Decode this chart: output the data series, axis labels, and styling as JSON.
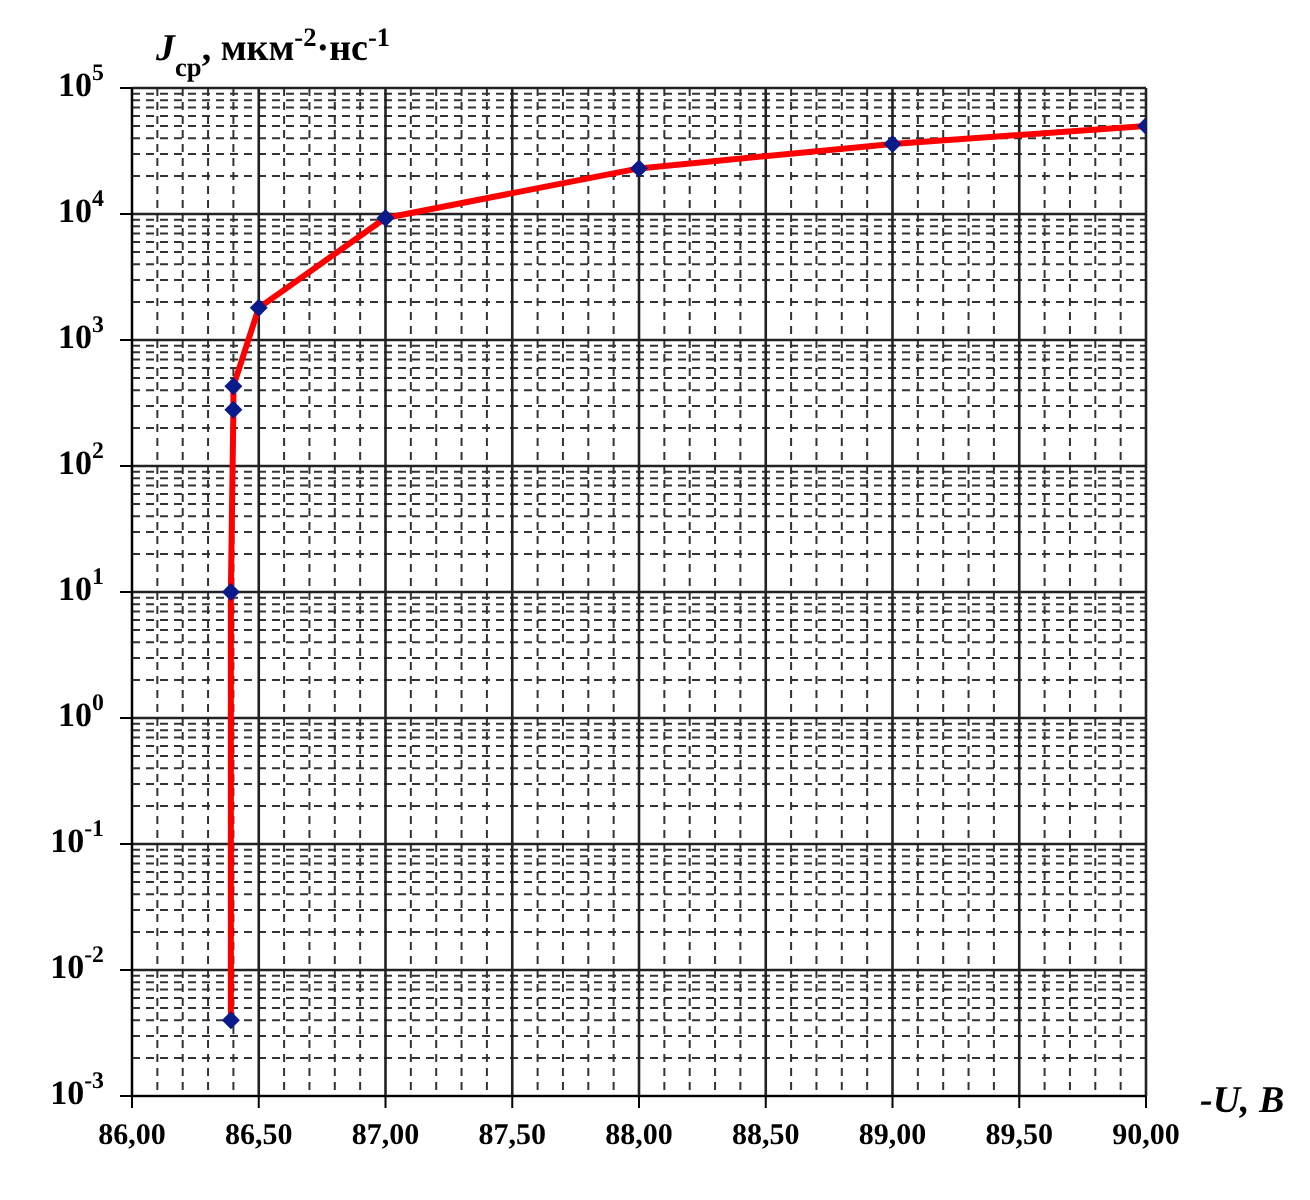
{
  "chart_data": {
    "type": "line",
    "xlabel": "-U, В",
    "ylabel": "J$_{ср}$,  мкм$^{-2}$·нс$^{-1}$",
    "x": [
      86.39,
      86.39,
      86.4,
      86.4,
      86.5,
      87,
      88,
      89,
      90
    ],
    "series": [
      {
        "color": "#ff0000",
        "values": [
          0.004,
          10,
          280,
          430,
          1800,
          9300,
          23000,
          36000,
          50000
        ]
      }
    ],
    "marker": "diamond",
    "line_style": "solid",
    "log": "y",
    "grid": true,
    "xlim": [
      86,
      90
    ],
    "xticks": [
      {
        "value": 86,
        "label": "86,00"
      },
      {
        "value": 86.5,
        "label": "86,50"
      },
      {
        "value": 87,
        "label": "87,00"
      },
      {
        "value": 87.5,
        "label": "87,50"
      },
      {
        "value": 88,
        "label": "88,00"
      },
      {
        "value": 88.5,
        "label": "88,50"
      },
      {
        "value": 89,
        "label": "89,00"
      },
      {
        "value": 89.5,
        "label": "89,50"
      },
      {
        "value": 90,
        "label": "90,00"
      }
    ],
    "ylim": [
      0.001,
      100000
    ],
    "yticks": [
      {
        "value": 0.001,
        "label": "10$^{-3}$"
      },
      {
        "value": 0.01,
        "label": "10$^{-2}$"
      },
      {
        "value": 0.1,
        "label": "10$^{-1}$"
      },
      {
        "value": 1,
        "label": "10$^{0}$"
      },
      {
        "value": 10,
        "label": "10$^{1}$"
      },
      {
        "value": 100,
        "label": "10$^{2}$"
      },
      {
        "value": 1000,
        "label": "10$^{3}$"
      },
      {
        "value": 10000,
        "label": "10$^{4}$"
      },
      {
        "value": 100000,
        "label": "10$^{5}$"
      }
    ]
  }
}
